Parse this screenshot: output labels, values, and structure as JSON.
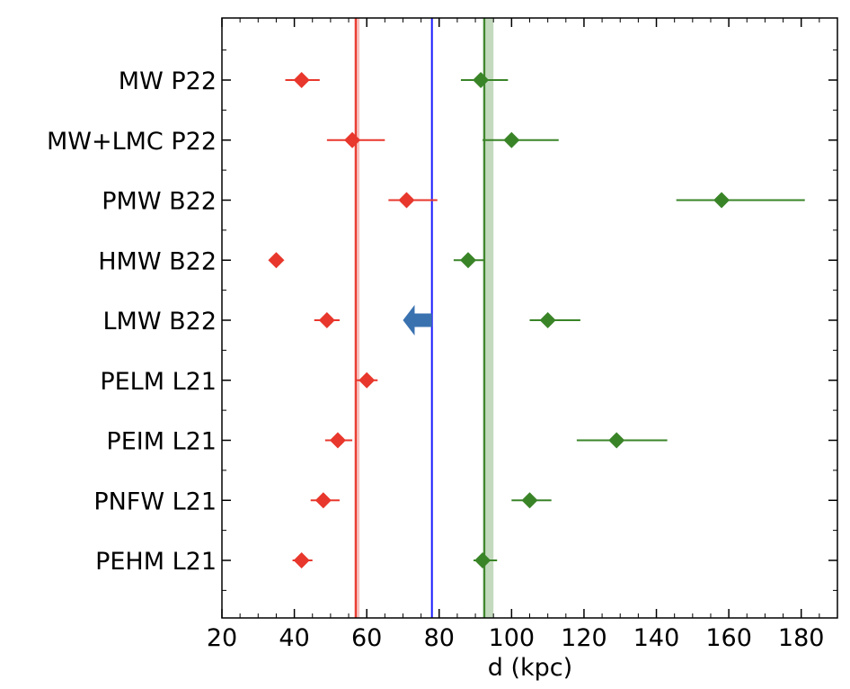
{
  "chart_data": {
    "type": "scatter",
    "xlabel": "d (kpc)",
    "ylabel": "",
    "xlim": [
      20,
      190
    ],
    "xticks": [
      "20",
      "40",
      "60",
      "80",
      "100",
      "120",
      "140",
      "160",
      "180"
    ],
    "xtick_values": [
      20,
      40,
      60,
      80,
      100,
      120,
      140,
      160,
      180
    ],
    "grid": false,
    "categories": [
      "MW P22",
      "MW+LMC P22",
      "PMW B22",
      "HMW B22",
      "LMW B22",
      "PELM L21",
      "PEIM L21",
      "PNFW L21",
      "PEHM L21"
    ],
    "series": [
      {
        "color": "#e8372c",
        "marker": "diamond",
        "values": [
          42,
          56,
          71,
          35,
          49,
          60,
          52,
          48,
          42
        ],
        "err_low": [
          4.5,
          7,
          5,
          1.5,
          3.5,
          3,
          3.5,
          3.5,
          2.5
        ],
        "err_high": [
          5,
          9,
          8.5,
          1.5,
          3.5,
          3,
          4,
          4.5,
          3
        ],
        "vline": {
          "value": 57,
          "band": [
            56.5,
            58
          ]
        }
      },
      {
        "color": "#3a8428",
        "marker": "diamond",
        "values": [
          91.5,
          100,
          158,
          88,
          110,
          null,
          129,
          105,
          92
        ],
        "err_low": [
          5.5,
          8,
          12.5,
          4,
          5,
          null,
          11,
          5,
          2.5
        ],
        "err_high": [
          7.5,
          13,
          23,
          4.5,
          9,
          null,
          14,
          6,
          4
        ],
        "vline": {
          "value": 92.5,
          "band": [
            92,
            95
          ]
        }
      }
    ],
    "reference_line": {
      "value": 78,
      "color": "#1a1aff"
    },
    "upper_limit_arrow": {
      "category": "LMW B22",
      "from": 78,
      "to": 70,
      "color": "#3a72b0"
    }
  }
}
